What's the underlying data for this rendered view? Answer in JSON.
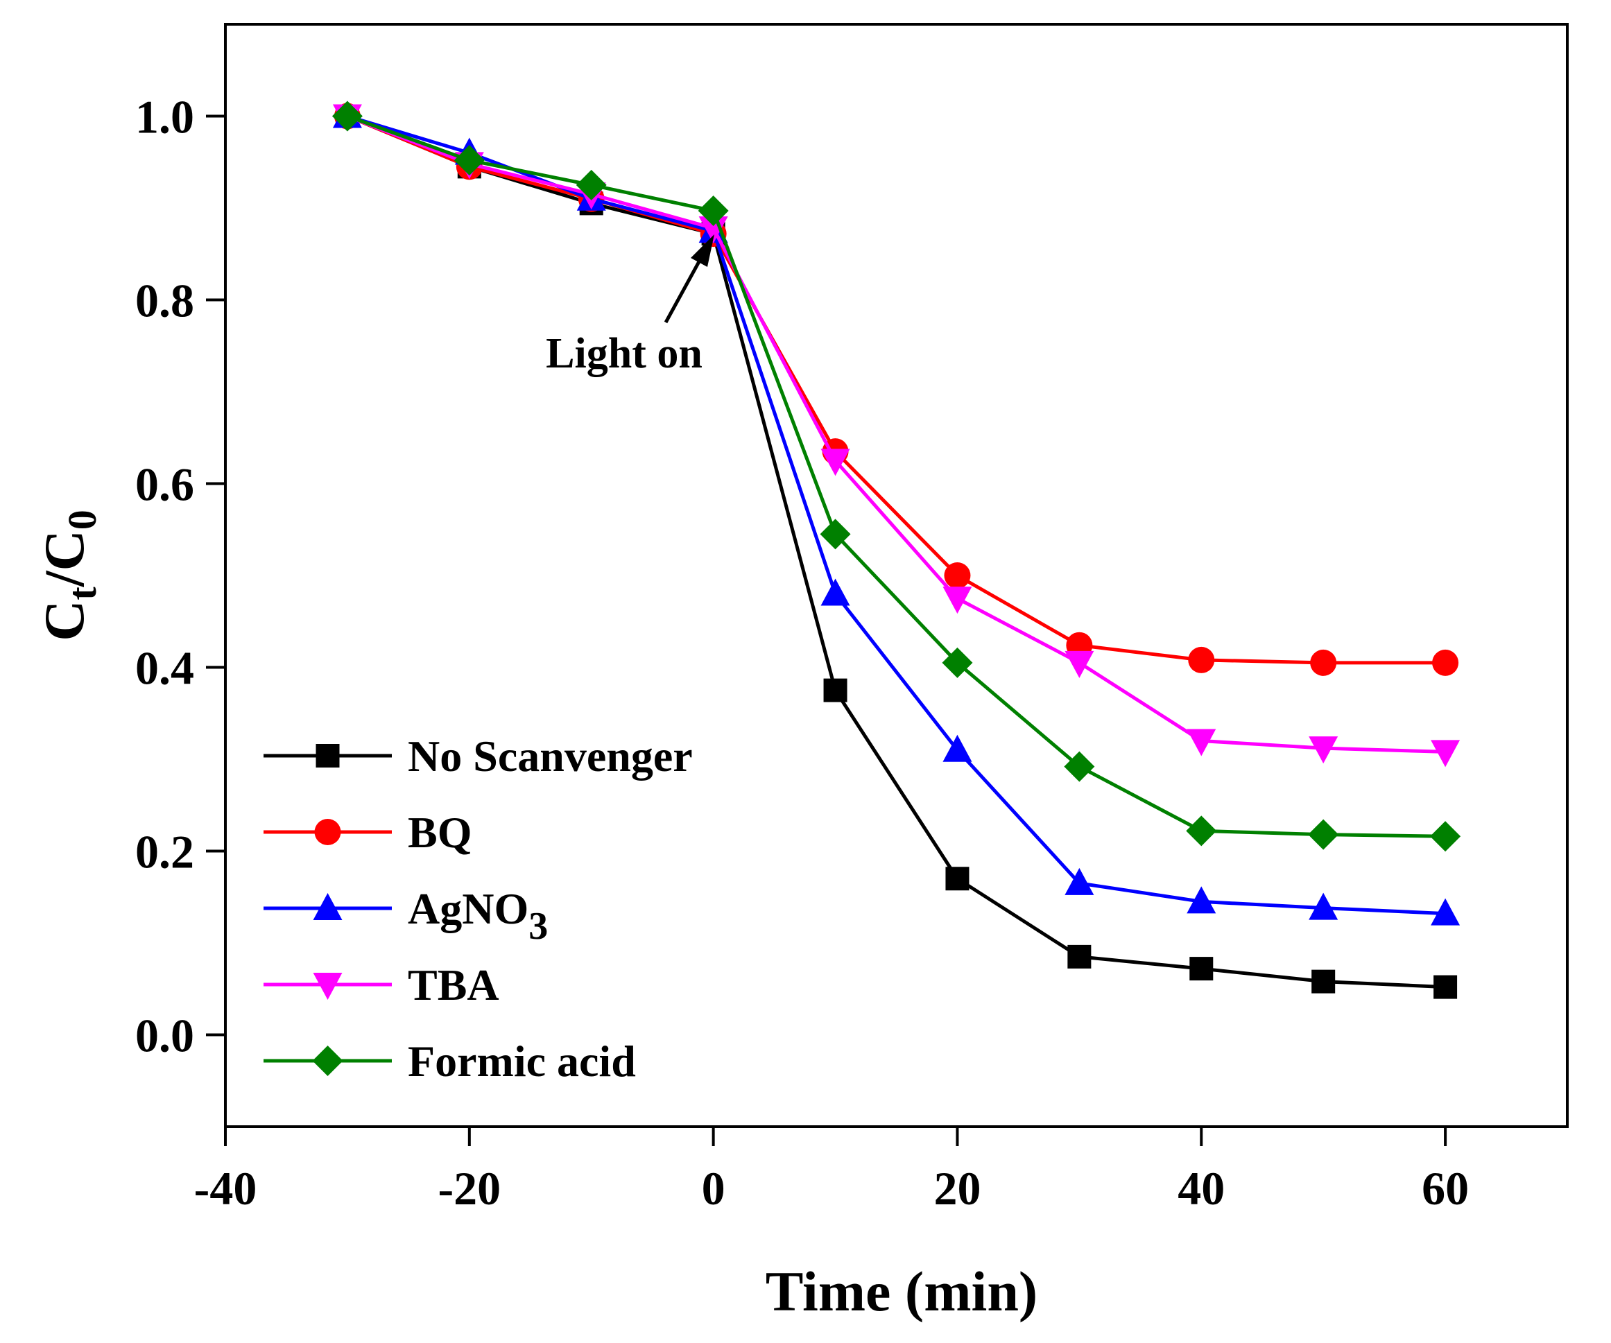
{
  "chart_data": {
    "type": "line",
    "xlabel": "Time (min)",
    "ylabel": {
      "base": "C",
      "sub_num": "t",
      "slash": "/",
      "base2": "C",
      "sub_den": "0"
    },
    "xlim": [
      -40,
      70
    ],
    "ylim": [
      -0.1,
      1.1
    ],
    "xticks": [
      -40,
      -20,
      0,
      20,
      40,
      60
    ],
    "xtick_labels": [
      "-40",
      "-20",
      "0",
      "20",
      "40",
      "60"
    ],
    "yticks": [
      0.0,
      0.2,
      0.4,
      0.6,
      0.8,
      1.0
    ],
    "ytick_labels": [
      "0.0",
      "0.2",
      "0.4",
      "0.6",
      "0.8",
      "1.0"
    ],
    "x": [
      -30,
      -20,
      -10,
      0,
      10,
      20,
      30,
      40,
      50,
      60
    ],
    "series": [
      {
        "name": "No Scanvenger",
        "name_sub": "",
        "color": "#000000",
        "marker": "square",
        "values": [
          1.0,
          0.945,
          0.905,
          0.872,
          0.375,
          0.17,
          0.085,
          0.072,
          0.058,
          0.052
        ]
      },
      {
        "name": "BQ",
        "name_sub": "",
        "color": "#ff0000",
        "marker": "circle",
        "values": [
          1.0,
          0.945,
          0.91,
          0.872,
          0.635,
          0.5,
          0.424,
          0.408,
          0.405,
          0.405
        ]
      },
      {
        "name": "AgNO",
        "name_sub": "3",
        "color": "#0000ff",
        "marker": "triangle-up",
        "values": [
          1.0,
          0.96,
          0.91,
          0.875,
          0.48,
          0.31,
          0.165,
          0.145,
          0.138,
          0.132
        ]
      },
      {
        "name": "TBA",
        "name_sub": "",
        "color": "#ff00ff",
        "marker": "triangle-down",
        "values": [
          1.0,
          0.948,
          0.915,
          0.878,
          0.625,
          0.475,
          0.405,
          0.32,
          0.312,
          0.308
        ]
      },
      {
        "name": "Formic acid",
        "name_sub": "",
        "color": "#008000",
        "marker": "diamond",
        "values": [
          1.0,
          0.952,
          0.925,
          0.897,
          0.545,
          0.405,
          0.292,
          0.222,
          0.218,
          0.216
        ]
      }
    ],
    "annotation": {
      "text": "Light on",
      "x": 0,
      "y": 0.872
    },
    "legend": {
      "position": "lower-left"
    },
    "grid": false
  }
}
